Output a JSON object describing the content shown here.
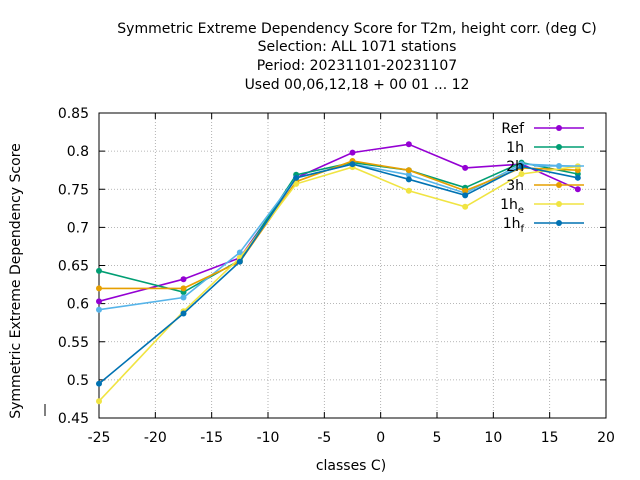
{
  "chart_data": {
    "type": "line",
    "title_lines": [
      "Symmetric Extreme Dependency Score  for T2m, height corr. (deg C)",
      "Selection: ALL   1071 stations",
      "Period: 20231101-20231107",
      "Used  00,06,12,18 + 00 01 ... 12"
    ],
    "xlabel": "classes C)",
    "ylabel": "Symmetric Extreme Dependency Score",
    "xlim": [
      -25,
      20
    ],
    "ylim": [
      0.45,
      0.85
    ],
    "xticks": [
      -25,
      -20,
      -15,
      -10,
      -5,
      0,
      5,
      10,
      15,
      20
    ],
    "yticks": [
      0.45,
      0.5,
      0.55,
      0.6,
      0.65,
      0.7,
      0.75,
      0.8,
      0.85
    ],
    "grid": true,
    "legend_position": "top-right",
    "series": [
      {
        "name": "Ref",
        "color": "#9400d3",
        "x": [
          -25,
          -17.5,
          -12.5,
          -7.5,
          -2.5,
          2.5,
          7.5,
          12.5,
          17.5
        ],
        "y": [
          0.603,
          0.632,
          0.66,
          0.765,
          0.798,
          0.809,
          0.778,
          0.783,
          0.75
        ]
      },
      {
        "name": "1h",
        "color": "#009e73",
        "x": [
          -25,
          -17.5,
          -12.5,
          -7.5,
          -2.5,
          2.5,
          7.5,
          12.5,
          17.5
        ],
        "y": [
          0.643,
          0.615,
          0.657,
          0.769,
          0.785,
          0.775,
          0.752,
          0.785,
          0.77
        ]
      },
      {
        "name": "2h",
        "color": "#56b4e9",
        "x": [
          -25,
          -17.5,
          -12.5,
          -7.5,
          -2.5,
          2.5,
          7.5,
          12.5,
          17.5
        ],
        "y": [
          0.592,
          0.608,
          0.667,
          0.765,
          0.783,
          0.769,
          0.745,
          0.783,
          0.78
        ]
      },
      {
        "name": "3h",
        "color": "#e69f00",
        "x": [
          -25,
          -17.5,
          -12.5,
          -7.5,
          -2.5,
          2.5,
          7.5,
          12.5,
          17.5
        ],
        "y": [
          0.62,
          0.62,
          0.655,
          0.76,
          0.787,
          0.775,
          0.748,
          0.778,
          0.775
        ]
      },
      {
        "name": "1h",
        "sub": "e",
        "color": "#f0e442",
        "x": [
          -25,
          -17.5,
          -12.5,
          -7.5,
          -2.5,
          2.5,
          7.5,
          12.5,
          17.5
        ],
        "y": [
          0.472,
          0.59,
          0.66,
          0.757,
          0.779,
          0.748,
          0.727,
          0.77,
          0.78
        ]
      },
      {
        "name": "1h",
        "sub": "f",
        "color": "#0072b2",
        "x": [
          -25,
          -17.5,
          -12.5,
          -7.5,
          -2.5,
          2.5,
          7.5,
          12.5,
          17.5
        ],
        "y": [
          0.495,
          0.587,
          0.655,
          0.765,
          0.783,
          0.763,
          0.742,
          0.78,
          0.765
        ]
      }
    ]
  }
}
